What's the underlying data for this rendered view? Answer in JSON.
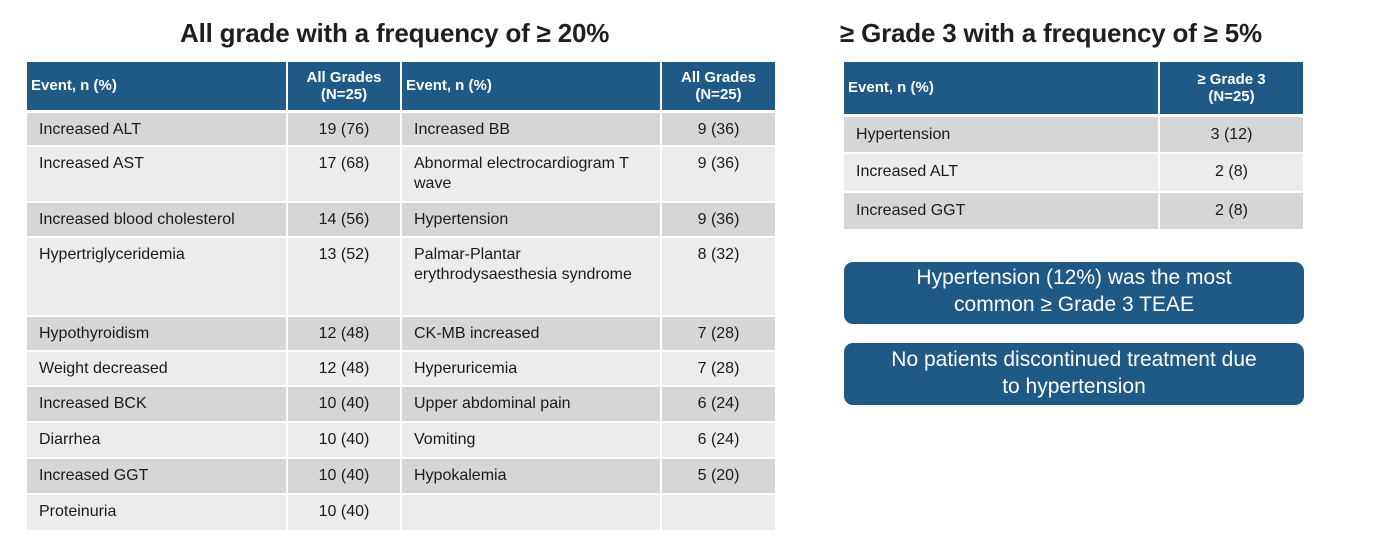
{
  "titles": {
    "left": "All grade with a frequency of ≥ 20%",
    "right": "≥ Grade 3 with a frequency of ≥ 5%"
  },
  "main_table": {
    "headers": {
      "event": "Event,  n (%)",
      "all_grades_line1": "All Grades",
      "all_grades_line2": "(N=25)"
    },
    "rows": [
      {
        "left_event": "Increased ALT",
        "left_value": "19 (76)",
        "right_event": "Increased BB",
        "right_value": "9 (36)"
      },
      {
        "left_event": "Increased AST",
        "left_value": "17 (68)",
        "right_event": "Abnormal electrocardiogram T wave",
        "right_value": "9 (36)"
      },
      {
        "left_event": "Increased blood cholesterol",
        "left_value": "14 (56)",
        "right_event": "Hypertension",
        "right_value": "9 (36)"
      },
      {
        "left_event": "Hypertriglyceridemia",
        "left_value": "13 (52)",
        "right_event": "Palmar-Plantar erythrodysaesthesia syndrome",
        "right_value": "8 (32)"
      },
      {
        "left_event": "Hypothyroidism",
        "left_value": "12 (48)",
        "right_event": "CK-MB increased",
        "right_value": "7 (28)"
      },
      {
        "left_event": "Weight decreased",
        "left_value": "12 (48)",
        "right_event": "Hyperuricemia",
        "right_value": "7 (28)"
      },
      {
        "left_event": "Increased BCK",
        "left_value": "10 (40)",
        "right_event": "Upper abdominal pain",
        "right_value": "6 (24)"
      },
      {
        "left_event": "Diarrhea",
        "left_value": "10 (40)",
        "right_event": "Vomiting",
        "right_value": "6 (24)"
      },
      {
        "left_event": "Increased GGT",
        "left_value": "10 (40)",
        "right_event": "Hypokalemia",
        "right_value": "5 (20)"
      },
      {
        "left_event": "Proteinuria",
        "left_value": "10 (40)",
        "right_event": "",
        "right_value": ""
      }
    ]
  },
  "grade3_table": {
    "headers": {
      "event": "Event,  n (%)",
      "grade_line1": "≥ Grade  3",
      "grade_line2": "(N=25)"
    },
    "rows": [
      {
        "event": "Hypertension",
        "value": "3 (12)"
      },
      {
        "event": "Increased ALT",
        "value": "2 (8)"
      },
      {
        "event": "Increased GGT",
        "value": "2 (8)"
      }
    ]
  },
  "callouts": [
    {
      "line1": "Hypertension  (12%) was the most",
      "line2": "common ≥ Grade 3 TEAE"
    },
    {
      "line1": "No patients discontinued treatment due",
      "line2": "to hypertension"
    }
  ],
  "colors": {
    "header_blue": "#1e5a85",
    "row_dark": "#d6d6d6",
    "row_light": "#ececec"
  }
}
